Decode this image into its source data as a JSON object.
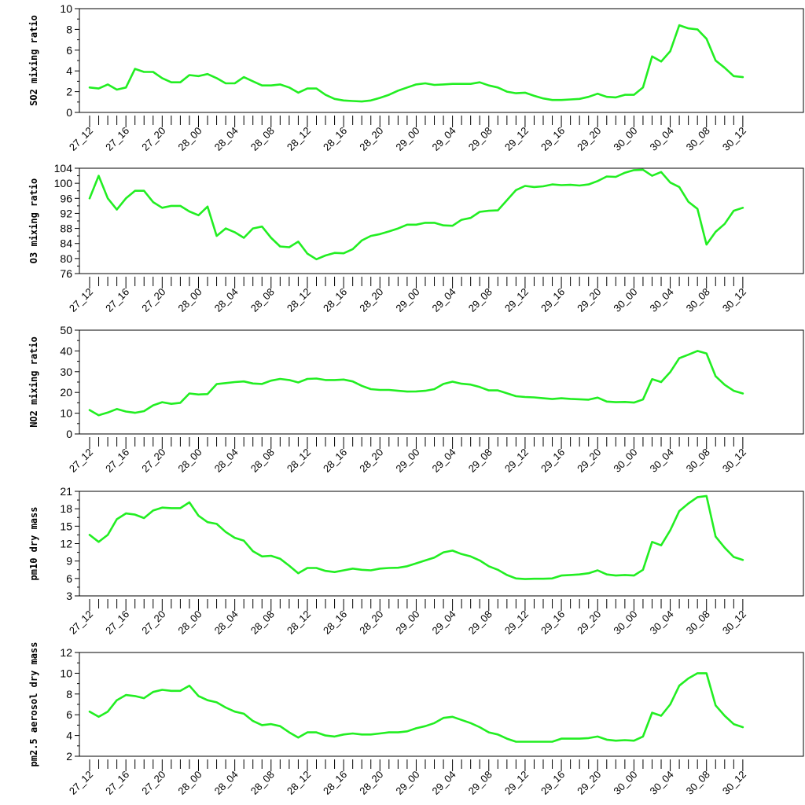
{
  "line_color": "#22ee22",
  "chart_data": [
    {
      "type": "line",
      "ylabel": "SO2 mixing ratio",
      "ylim": [
        0,
        10
      ],
      "yticks": [
        0,
        2,
        4,
        6,
        8,
        10
      ],
      "x_tick_labels": [
        "27_12",
        "27_16",
        "27_20",
        "28_00",
        "28_04",
        "28_08",
        "28_12",
        "28_16",
        "28_20",
        "29_00",
        "29_04",
        "29_08",
        "29_12",
        "29_16",
        "29_20",
        "30_00",
        "30_04",
        "30_08",
        "30_12"
      ],
      "grid": false,
      "values": [
        2.4,
        2.3,
        2.7,
        2.2,
        2.4,
        4.2,
        3.9,
        3.9,
        3.3,
        2.9,
        2.9,
        3.6,
        3.5,
        3.7,
        3.3,
        2.8,
        2.8,
        3.4,
        3.0,
        2.6,
        2.6,
        2.7,
        2.4,
        1.9,
        2.3,
        2.3,
        1.7,
        1.3,
        1.15,
        1.1,
        1.05,
        1.15,
        1.4,
        1.7,
        2.1,
        2.4,
        2.7,
        2.8,
        2.65,
        2.7,
        2.75,
        2.75,
        2.75,
        2.9,
        2.6,
        2.4,
        2.0,
        1.85,
        1.9,
        1.6,
        1.35,
        1.2,
        1.2,
        1.25,
        1.3,
        1.5,
        1.8,
        1.5,
        1.45,
        1.7,
        1.7,
        2.4,
        5.4,
        4.9,
        5.9,
        8.4,
        8.1,
        8.0,
        7.1,
        5.0,
        4.3,
        3.5,
        3.4
      ]
    },
    {
      "type": "line",
      "ylabel": "O3 mixing ratio",
      "ylim": [
        76,
        104
      ],
      "yticks": [
        76,
        80,
        84,
        88,
        92,
        96,
        100,
        104
      ],
      "x_tick_labels": [
        "27_12",
        "27_16",
        "27_20",
        "28_00",
        "28_04",
        "28_08",
        "28_12",
        "28_16",
        "28_20",
        "29_00",
        "29_04",
        "29_08",
        "29_12",
        "29_16",
        "29_20",
        "30_00",
        "30_04",
        "30_08",
        "30_12"
      ],
      "grid": false,
      "values": [
        96,
        102,
        96,
        93,
        96,
        98,
        98,
        95,
        93.5,
        94,
        94,
        92.5,
        91.5,
        93.8,
        86,
        88,
        87,
        85.5,
        88,
        88.5,
        85.5,
        83.2,
        83,
        84.5,
        81.3,
        79.8,
        80.8,
        81.5,
        81.4,
        82.5,
        84.8,
        86,
        86.5,
        87.2,
        88,
        89,
        89,
        89.5,
        89.5,
        88.8,
        88.7,
        90.3,
        90.8,
        92.4,
        92.7,
        92.8,
        95.5,
        98.2,
        99.3,
        99,
        99.2,
        99.7,
        99.5,
        99.6,
        99.4,
        99.7,
        100.6,
        101.8,
        101.7,
        102.8,
        103.5,
        103.6,
        102,
        103,
        100.2,
        99,
        95.1,
        93.2,
        83.7,
        87.1,
        89.2,
        92.7,
        93.5
      ]
    },
    {
      "type": "line",
      "ylabel": "NO2 mixing ratio",
      "ylim": [
        0,
        50
      ],
      "yticks": [
        0,
        10,
        20,
        30,
        40,
        50
      ],
      "x_tick_labels": [
        "27_12",
        "27_16",
        "27_20",
        "28_00",
        "28_04",
        "28_08",
        "28_12",
        "28_16",
        "28_20",
        "29_00",
        "29_04",
        "29_08",
        "29_12",
        "29_16",
        "29_20",
        "30_00",
        "30_04",
        "30_08",
        "30_12"
      ],
      "grid": false,
      "values": [
        11.5,
        9,
        10.3,
        12,
        10.8,
        10.2,
        11,
        13.8,
        15.3,
        14.5,
        15,
        19.5,
        19,
        19.2,
        24,
        24.5,
        25,
        25.3,
        24.3,
        24.1,
        25.7,
        26.5,
        26,
        24.8,
        26.5,
        26.7,
        26,
        26,
        26.2,
        25.3,
        23.2,
        21.6,
        21.2,
        21.2,
        20.8,
        20.4,
        20.5,
        20.8,
        21.6,
        24.1,
        25.2,
        24.2,
        23.8,
        22.6,
        21,
        21,
        19.6,
        18.2,
        17.8,
        17.6,
        17.2,
        16.8,
        17.2,
        16.9,
        16.7,
        16.5,
        17.5,
        15.6,
        15.3,
        15.4,
        15.1,
        16.6,
        26.4,
        25,
        29.8,
        36.5,
        38.2,
        40,
        38.8,
        27.8,
        23.7,
        20.8,
        19.5
      ]
    },
    {
      "type": "line",
      "ylabel": "pm10 dry mass",
      "ylim": [
        3,
        21
      ],
      "yticks": [
        3,
        6,
        9,
        12,
        15,
        18,
        21
      ],
      "x_tick_labels": [
        "27_12",
        "27_16",
        "27_20",
        "28_00",
        "28_04",
        "28_08",
        "28_12",
        "28_16",
        "28_20",
        "29_00",
        "29_04",
        "29_08",
        "29_12",
        "29_16",
        "29_20",
        "30_00",
        "30_04",
        "30_08",
        "30_12"
      ],
      "grid": false,
      "values": [
        13.5,
        12.3,
        13.5,
        16.2,
        17.2,
        17,
        16.4,
        17.7,
        18.2,
        18.1,
        18.1,
        19.1,
        16.8,
        15.7,
        15.4,
        14,
        13,
        12.5,
        10.7,
        9.8,
        9.9,
        9.4,
        8.2,
        6.9,
        7.8,
        7.8,
        7.3,
        7.1,
        7.4,
        7.7,
        7.5,
        7.4,
        7.7,
        7.8,
        7.85,
        8.1,
        8.6,
        9.1,
        9.6,
        10.5,
        10.8,
        10.2,
        9.8,
        9.1,
        8.1,
        7.5,
        6.6,
        6,
        5.9,
        5.95,
        5.95,
        6,
        6.5,
        6.6,
        6.7,
        6.9,
        7.4,
        6.7,
        6.5,
        6.6,
        6.5,
        7.5,
        12.3,
        11.7,
        14.3,
        17.6,
        18.9,
        20,
        20.2,
        13.2,
        11.3,
        9.7,
        9.2
      ]
    },
    {
      "type": "line",
      "ylabel": "pm2.5 aerosol dry mass",
      "ylim": [
        2,
        12
      ],
      "yticks": [
        2,
        4,
        6,
        8,
        10,
        12
      ],
      "x_tick_labels": [
        "27_12",
        "27_16",
        "27_20",
        "28_00",
        "28_04",
        "28_08",
        "28_12",
        "28_16",
        "28_20",
        "29_00",
        "29_04",
        "29_08",
        "29_12",
        "29_16",
        "29_20",
        "30_00",
        "30_04",
        "30_08",
        "30_12"
      ],
      "grid": false,
      "values": [
        6.3,
        5.8,
        6.3,
        7.4,
        7.9,
        7.8,
        7.6,
        8.2,
        8.4,
        8.3,
        8.3,
        8.8,
        7.8,
        7.4,
        7.2,
        6.7,
        6.3,
        6.1,
        5.4,
        5.0,
        5.1,
        4.9,
        4.3,
        3.8,
        4.3,
        4.3,
        4.0,
        3.9,
        4.1,
        4.2,
        4.1,
        4.1,
        4.2,
        4.3,
        4.3,
        4.4,
        4.7,
        4.9,
        5.2,
        5.7,
        5.8,
        5.5,
        5.2,
        4.8,
        4.3,
        4.1,
        3.7,
        3.4,
        3.4,
        3.4,
        3.4,
        3.4,
        3.7,
        3.7,
        3.7,
        3.75,
        3.9,
        3.6,
        3.5,
        3.55,
        3.5,
        3.9,
        6.2,
        5.9,
        7.0,
        8.8,
        9.5,
        10.0,
        10.0,
        6.9,
        5.9,
        5.1,
        4.8
      ]
    }
  ]
}
